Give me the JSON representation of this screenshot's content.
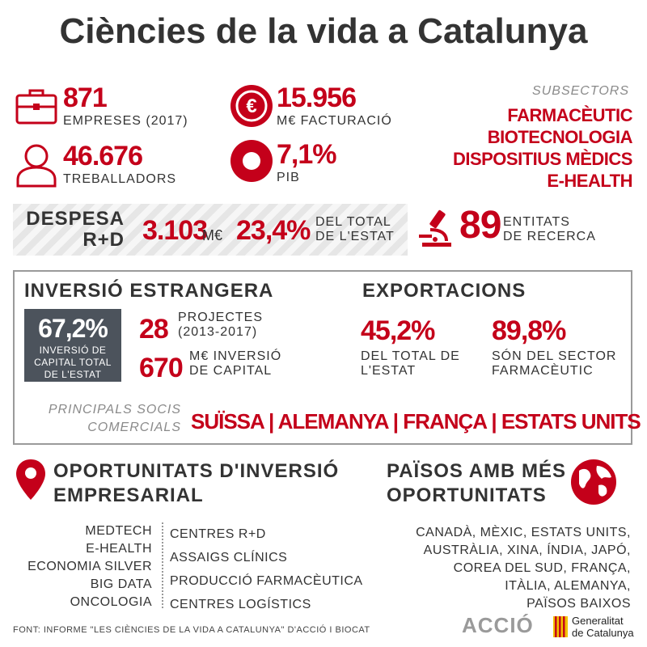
{
  "title": "Ciències de la vida a Catalunya",
  "stats": {
    "empreses": {
      "value": "871",
      "label": "EMPRESES (2017)",
      "icon": "briefcase-icon"
    },
    "facturacio": {
      "value": "15.956",
      "label": "M€ FACTURACIÓ",
      "icon": "euro-icon"
    },
    "treballadors": {
      "value": "46.676",
      "label": "TREBALLADORS",
      "icon": "person-icon"
    },
    "pib": {
      "value": "7,1%",
      "label": "PIB",
      "icon": "ring-chart-icon"
    }
  },
  "subsectors": {
    "label": "SUBSECTORS",
    "items": [
      "FARMACÈUTIC",
      "BIOTECNOLOGIA",
      "DISPOSITIUS MÈDICS",
      "E-HEALTH"
    ]
  },
  "despesa": {
    "label_line1": "DESPESA",
    "label_line2": "R+D",
    "amount": "3.103",
    "amount_unit": "M€",
    "percent": "23,4%",
    "percent_line1": "DEL TOTAL",
    "percent_line2": "DE L'ESTAT"
  },
  "entitats": {
    "value": "89",
    "line1": "ENTITATS",
    "line2": "DE RECERCA",
    "icon": "microscope-icon"
  },
  "inversio": {
    "heading": "INVERSIÓ ESTRANGERA",
    "badge_value": "67,2%",
    "badge_line1": "INVERSIÓ DE",
    "badge_line2": "CAPITAL TOTAL",
    "badge_line3": "DE L'ESTAT",
    "projectes_value": "28",
    "projectes_line1": "PROJECTES",
    "projectes_line2": "(2013-2017)",
    "capital_value": "670",
    "capital_line1": "M€ INVERSIÓ",
    "capital_line2": "DE CAPITAL"
  },
  "exportacions": {
    "heading": "EXPORTACIONS",
    "left_value": "45,2%",
    "left_line1": "DEL TOTAL DE",
    "left_line2": "L'ESTAT",
    "right_value": "89,8%",
    "right_line1": "SÓN DEL SECTOR",
    "right_line2": "FARMACÈUTIC"
  },
  "socis": {
    "label_line1": "PRINCIPALS SOCIS",
    "label_line2": "COMERCIALS",
    "countries": "SUÏSSA | ALEMANYA | FRANÇA | ESTATS UNITS"
  },
  "oportunitats": {
    "heading_line1": "OPORTUNITATS D'INVERSIÓ",
    "heading_line2": "EMPRESARIAL",
    "icon": "map-pin-icon",
    "left_items": [
      "MEDTECH",
      "E-HEALTH",
      "ECONOMIA SILVER",
      "BIG DATA",
      "ONCOLOGIA"
    ],
    "right_items": [
      "CENTRES R+D",
      "ASSAIGS CLÍNICS",
      "PRODUCCIÓ FARMACÈUTICA",
      "CENTRES LOGÍSTICS"
    ]
  },
  "paisos": {
    "heading_line1": "PAÏSOS AMB MÉS",
    "heading_line2": "OPORTUNITATS",
    "icon": "globe-icon",
    "lines": [
      "CANADÀ, MÈXIC, ESTATS UNITS,",
      "AUSTRÀLIA, XINA, ÍNDIA, JAPÓ,",
      "COREA DEL SUD, FRANÇA,",
      "ITÀLIA, ALEMANYA,",
      "PAÏSOS BAIXOS"
    ]
  },
  "footer": {
    "source": "FONT: INFORME \"LES CIÈNCIES DE LA VIDA A CATALUNYA\" D'ACCIÓ I BIOCAT",
    "accio_logo": "ACCIÓ",
    "gencat_line1": "Generalitat",
    "gencat_line2": "de Catalunya"
  },
  "colors": {
    "accent": "#c4001a",
    "dark": "#333333",
    "badge": "#4c535c",
    "muted": "#8a8a8a"
  }
}
